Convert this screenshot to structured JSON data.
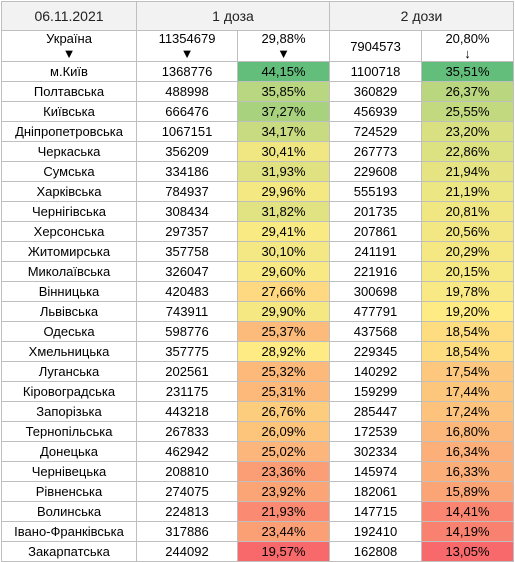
{
  "header": {
    "date": "06.11.2021",
    "dose1": "1 доза",
    "dose2": "2 дози"
  },
  "total": [
    "Україна",
    11354679,
    "29,88%",
    7904573,
    "20,80%"
  ],
  "rows": [
    [
      "м.Київ",
      1368776,
      "44,15%",
      1100718,
      "35,51%"
    ],
    [
      "Полтавська",
      488998,
      "35,85%",
      360829,
      "26,37%"
    ],
    [
      "Київська",
      666476,
      "37,27%",
      456939,
      "25,55%"
    ],
    [
      "Дніпропетровська",
      1067151,
      "34,17%",
      724529,
      "23,20%"
    ],
    [
      "Черкаська",
      356209,
      "30,41%",
      267773,
      "22,86%"
    ],
    [
      "Сумська",
      334186,
      "31,93%",
      229608,
      "21,94%"
    ],
    [
      "Харківська",
      784937,
      "29,96%",
      555193,
      "21,19%"
    ],
    [
      "Чернігівська",
      308434,
      "31,82%",
      201735,
      "20,81%"
    ],
    [
      "Херсонська",
      297357,
      "29,41%",
      207861,
      "20,56%"
    ],
    [
      "Житомирська",
      357758,
      "30,10%",
      241191,
      "20,29%"
    ],
    [
      "Миколаївська",
      326047,
      "29,60%",
      221916,
      "20,15%"
    ],
    [
      "Вінницька",
      420483,
      "27,66%",
      300698,
      "19,78%"
    ],
    [
      "Львівська",
      743911,
      "29,90%",
      477791,
      "19,20%"
    ],
    [
      "Одеська",
      598776,
      "25,37%",
      437568,
      "18,54%"
    ],
    [
      "Хмельницька",
      357775,
      "28,92%",
      229345,
      "18,54%"
    ],
    [
      "Луганська",
      202561,
      "25,32%",
      140292,
      "17,54%"
    ],
    [
      "Кіровоградська",
      231175,
      "25,31%",
      159299,
      "17,44%"
    ],
    [
      "Запорізька",
      443218,
      "26,76%",
      285447,
      "17,24%"
    ],
    [
      "Тернопільська",
      267833,
      "26,09%",
      172539,
      "16,80%"
    ],
    [
      "Донецька",
      462942,
      "25,02%",
      302334,
      "16,34%"
    ],
    [
      "Чернівецька",
      208810,
      "23,36%",
      145974,
      "16,33%"
    ],
    [
      "Рівненська",
      274075,
      "23,92%",
      182061,
      "15,89%"
    ],
    [
      "Волинська",
      224813,
      "21,93%",
      147715,
      "14,41%"
    ],
    [
      "Івано-Франківська",
      317886,
      "23,44%",
      192410,
      "14,19%"
    ],
    [
      "Закарпатська",
      244092,
      "19,57%",
      162808,
      "13,05%"
    ]
  ],
  "color_scale": {
    "low": "#f8696b",
    "mid": "#ffeb84",
    "high": "#63be7b"
  }
}
